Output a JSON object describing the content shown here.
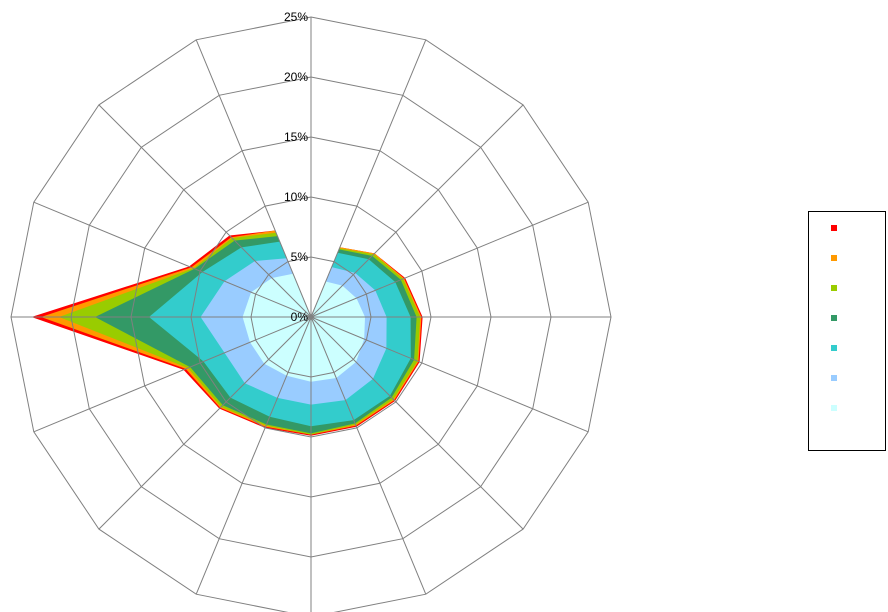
{
  "chart_data": {
    "type": "area",
    "subtype": "filled-radar",
    "title": "",
    "axis_ticks": [
      "0%",
      "5%",
      "10%",
      "15%",
      "20%",
      "25%"
    ],
    "rmax": 25,
    "spokes": 16,
    "grid": true,
    "legend_position": "right",
    "series": [
      {
        "color": "#ff0000",
        "values": [
          0,
          6.3,
          7.5,
          8.5,
          9.3,
          9.8,
          9.9,
          9.9,
          9.9,
          10.0,
          10.8,
          11.5,
          23.3,
          11.0,
          9.6,
          7.8
        ]
      },
      {
        "color": "#ff9900",
        "values": [
          0,
          6.3,
          7.5,
          8.4,
          9.2,
          9.7,
          9.8,
          9.8,
          9.8,
          9.9,
          10.7,
          11.3,
          22.5,
          10.8,
          9.4,
          7.8
        ]
      },
      {
        "color": "#99cc00",
        "values": [
          0,
          6.2,
          7.4,
          8.3,
          9.1,
          9.6,
          9.7,
          9.7,
          9.8,
          9.8,
          10.6,
          11.1,
          21.0,
          10.6,
          9.3,
          7.6
        ]
      },
      {
        "color": "#339966",
        "values": [
          0,
          6.1,
          7.2,
          8.1,
          8.8,
          9.3,
          9.5,
          9.6,
          9.7,
          9.7,
          10.4,
          10.9,
          18.0,
          10.5,
          9.0,
          7.3
        ]
      },
      {
        "color": "#33cccc",
        "values": [
          0,
          5.8,
          6.8,
          7.6,
          8.3,
          9.0,
          9.3,
          9.3,
          9.1,
          9.0,
          9.5,
          9.7,
          13.5,
          9.8,
          8.2,
          6.8
        ]
      },
      {
        "color": "#99ccff",
        "values": [
          0,
          4.5,
          5.2,
          5.8,
          6.3,
          6.8,
          7.3,
          7.5,
          7.3,
          7.3,
          7.8,
          7.8,
          9.2,
          7.8,
          6.6,
          5.3
        ]
      },
      {
        "color": "#ccffff",
        "values": [
          0,
          3.2,
          3.7,
          4.1,
          4.5,
          4.8,
          5.3,
          5.5,
          5.4,
          5.3,
          5.5,
          5.5,
          5.7,
          5.4,
          4.6,
          3.9
        ]
      }
    ]
  }
}
